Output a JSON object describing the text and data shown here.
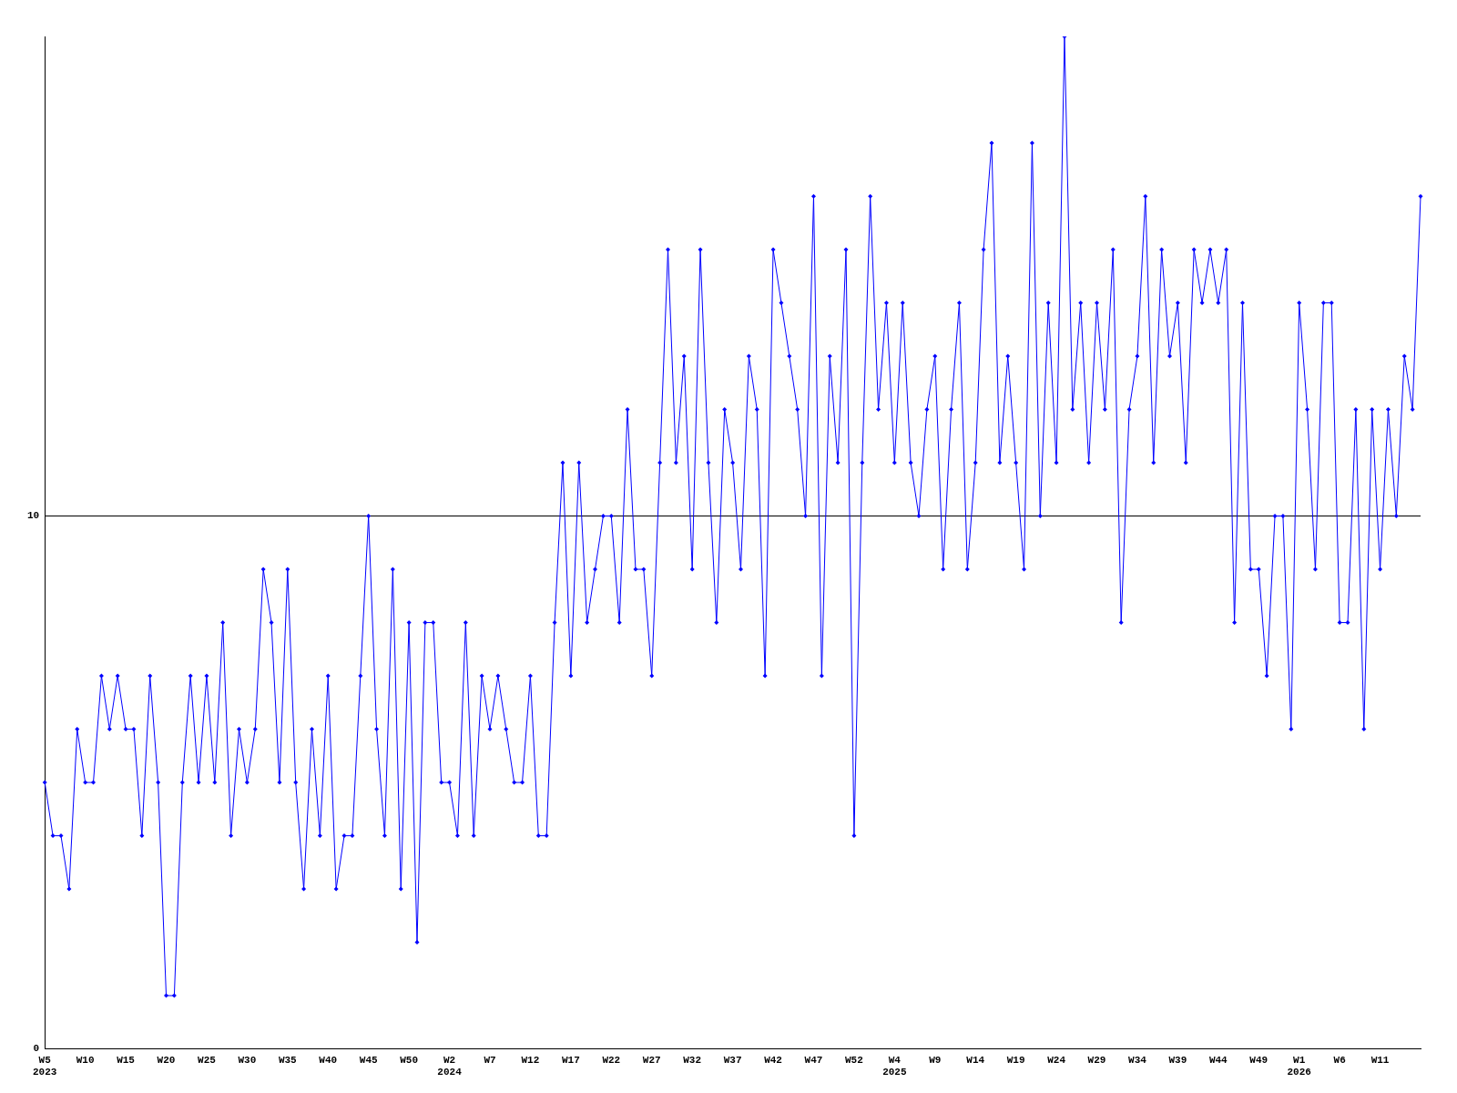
{
  "chart_data": {
    "type": "line",
    "categories": [
      "W5\n2023",
      null,
      null,
      null,
      null,
      "W10",
      null,
      null,
      null,
      null,
      "W15",
      null,
      null,
      null,
      null,
      "W20",
      null,
      null,
      null,
      null,
      "W25",
      null,
      null,
      null,
      null,
      "W30",
      null,
      null,
      null,
      null,
      "W35",
      null,
      null,
      null,
      null,
      "W40",
      null,
      null,
      null,
      null,
      "W45",
      null,
      null,
      null,
      null,
      "W50",
      null,
      null,
      null,
      null,
      "W2\n2024",
      null,
      null,
      null,
      null,
      "W7",
      null,
      null,
      null,
      null,
      "W12",
      null,
      null,
      null,
      null,
      "W17",
      null,
      null,
      null,
      null,
      "W22",
      null,
      null,
      null,
      null,
      "W27",
      null,
      null,
      null,
      null,
      "W32",
      null,
      null,
      null,
      null,
      "W37",
      null,
      null,
      null,
      null,
      "W42",
      null,
      null,
      null,
      null,
      "W47",
      null,
      null,
      null,
      null,
      "W52",
      null,
      null,
      null,
      null,
      "W4\n2025",
      null,
      null,
      null,
      null,
      "W9",
      null,
      null,
      null,
      null,
      "W14",
      null,
      null,
      null,
      null,
      "W19",
      null,
      null,
      null,
      null,
      "W24",
      null,
      null,
      null,
      null,
      "W29",
      null,
      null,
      null,
      null,
      "W34",
      null,
      null,
      null,
      null,
      "W39",
      null,
      null,
      null,
      null,
      "W44",
      null,
      null,
      null,
      null,
      "W49",
      null,
      null,
      null,
      null,
      "W1\n2026",
      null,
      null,
      null,
      null,
      "W6",
      null,
      null,
      null,
      null,
      "W11",
      null,
      null,
      null,
      null,
      null
    ],
    "series": [
      {
        "color": "#0000ff",
        "values": [
          5,
          4,
          4,
          3,
          6,
          5,
          5,
          7,
          6,
          7,
          6,
          6,
          4,
          7,
          5,
          1,
          1,
          5,
          7,
          5,
          7,
          5,
          8,
          4,
          6,
          5,
          6,
          9,
          8,
          5,
          9,
          5,
          3,
          6,
          4,
          7,
          3,
          4,
          4,
          7,
          10,
          6,
          4,
          9,
          3,
          8,
          2,
          8,
          8,
          5,
          5,
          4,
          8,
          4,
          7,
          6,
          7,
          6,
          5,
          5,
          7,
          4,
          4,
          8,
          11,
          7,
          11,
          8,
          9,
          10,
          10,
          8,
          12,
          9,
          9,
          7,
          11,
          15,
          11,
          13,
          9,
          15,
          11,
          8,
          12,
          11,
          9,
          13,
          12,
          7,
          15,
          14,
          13,
          12,
          10,
          16,
          7,
          13,
          11,
          15,
          4,
          11,
          16,
          12,
          14,
          11,
          14,
          11,
          10,
          12,
          13,
          9,
          12,
          14,
          9,
          11,
          15,
          17,
          11,
          13,
          11,
          9,
          17,
          10,
          14,
          11,
          19,
          12,
          14,
          11,
          14,
          12,
          15,
          8,
          12,
          13,
          16,
          11,
          15,
          13,
          14,
          11,
          15,
          14,
          15,
          14,
          15,
          8,
          14,
          9,
          9,
          7,
          10,
          10,
          6,
          14,
          12,
          9,
          14,
          14,
          8,
          8,
          12,
          6,
          12,
          9,
          12,
          10,
          13,
          12,
          16
        ]
      }
    ],
    "ylim": [
      0,
      19
    ],
    "yticks": [
      0,
      10
    ],
    "grid": "y",
    "legend": false,
    "marker": "diamond",
    "line_style": "solid"
  }
}
